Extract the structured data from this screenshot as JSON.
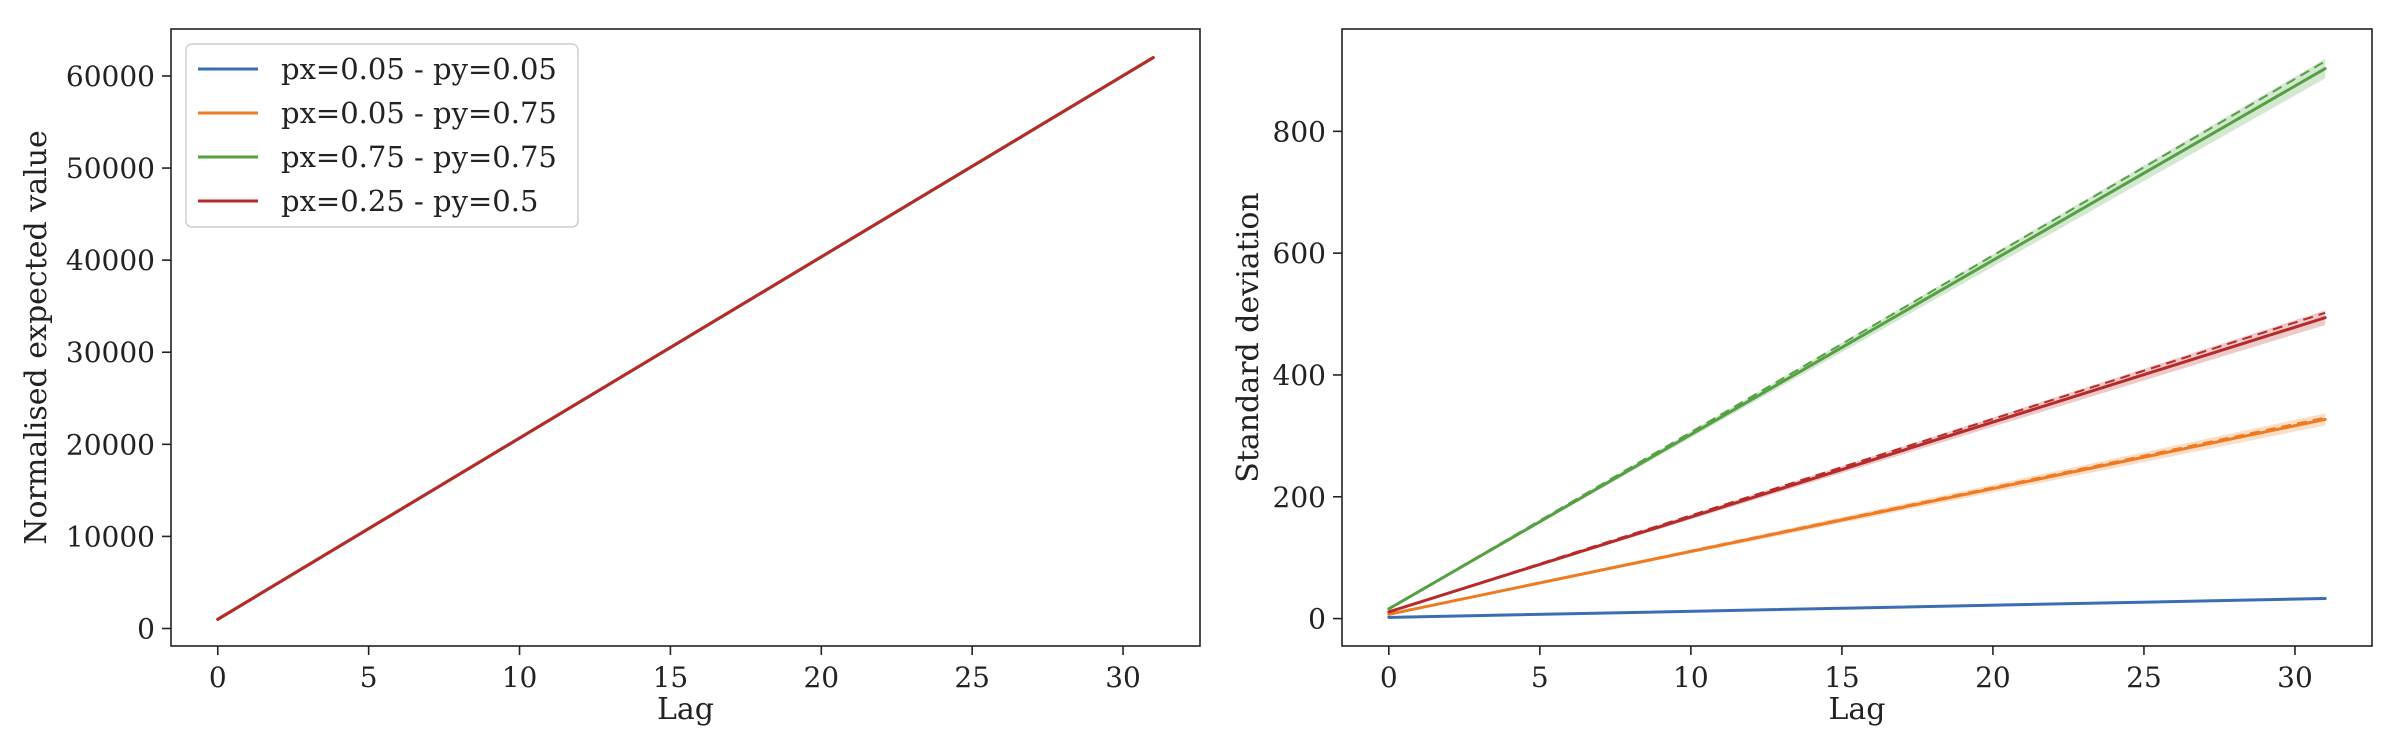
{
  "chart_data": [
    {
      "type": "line",
      "xlabel": "Lag",
      "ylabel": "Normalised expected value",
      "xlim": [
        -1.55,
        32.55
      ],
      "ylim": [
        -1900,
        65100
      ],
      "xticks": [
        0,
        5,
        10,
        15,
        20,
        25,
        30
      ],
      "yticks": [
        0,
        10000,
        20000,
        30000,
        40000,
        50000,
        60000
      ],
      "ytick_labels": [
        "0",
        "10000",
        "20000",
        "30000",
        "40000",
        "50000",
        "60000"
      ],
      "grid": false,
      "legend": "upper-left",
      "series": [
        {
          "name": "px=0.05 - py=0.05",
          "color": "#3b6db3",
          "x": [
            0,
            31
          ],
          "y": [
            1000,
            62000
          ]
        },
        {
          "name": "px=0.05 - py=0.75",
          "color": "#ee7b22",
          "x": [
            0,
            31
          ],
          "y": [
            1000,
            62000
          ]
        },
        {
          "name": "px=0.75 - py=0.75",
          "color": "#54a043",
          "x": [
            0,
            31
          ],
          "y": [
            1000,
            62000
          ]
        },
        {
          "name": "px=0.25 - py=0.5",
          "color": "#b72a2a",
          "x": [
            0,
            31
          ],
          "y": [
            1000,
            62000
          ]
        }
      ]
    },
    {
      "type": "line",
      "xlabel": "Lag",
      "ylabel": "Standard deviation",
      "xlim": [
        -1.55,
        32.55
      ],
      "ylim": [
        -45,
        968
      ],
      "xticks": [
        0,
        5,
        10,
        15,
        20,
        25,
        30
      ],
      "yticks": [
        0,
        200,
        400,
        600,
        800
      ],
      "ytick_labels": [
        "0",
        "200",
        "400",
        "600",
        "800"
      ],
      "grid": false,
      "series": [
        {
          "name": "px=0.05 - py=0.05",
          "color": "#3b6db3",
          "x": [
            0,
            31
          ],
          "y": [
            2,
            33
          ],
          "dashed_y": [
            2,
            33
          ],
          "band_width": [
            0,
            2
          ]
        },
        {
          "name": "px=0.05 - py=0.75",
          "color": "#ee7b22",
          "x": [
            0,
            31
          ],
          "y": [
            7,
            327
          ],
          "dashed_y": [
            7,
            330
          ],
          "band_width": [
            0,
            10
          ]
        },
        {
          "name": "px=0.75 - py=0.75",
          "color": "#54a043",
          "x": [
            0,
            31
          ],
          "y": [
            16,
            903
          ],
          "dashed_y": [
            16,
            915
          ],
          "band_width": [
            0,
            16
          ]
        },
        {
          "name": "px=0.25 - py=0.5",
          "color": "#b72a2a",
          "x": [
            0,
            31
          ],
          "y": [
            11,
            494
          ],
          "dashed_y": [
            11,
            502
          ],
          "band_width": [
            0,
            12
          ]
        }
      ]
    }
  ]
}
